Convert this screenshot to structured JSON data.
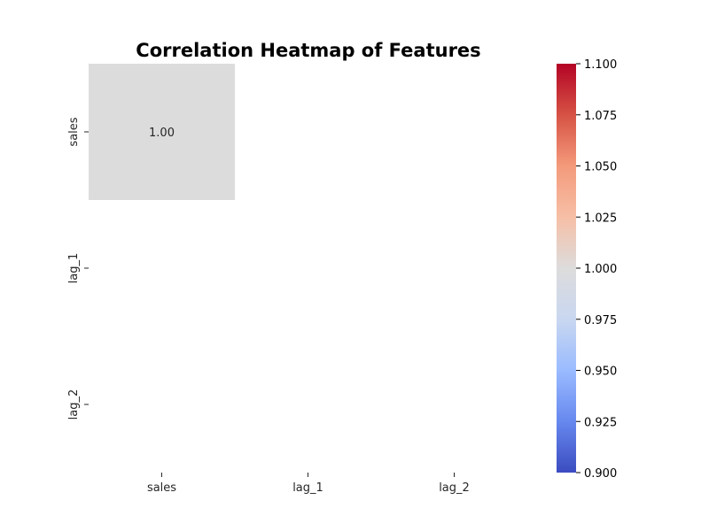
{
  "chart_data": {
    "type": "heatmap",
    "title": "Correlation Heatmap of Features",
    "xlabel": "",
    "ylabel": "",
    "x_categories": [
      "sales",
      "lag_1",
      "lag_2"
    ],
    "y_categories": [
      "sales",
      "lag_1",
      "lag_2"
    ],
    "values": [
      [
        1.0,
        null,
        null
      ],
      [
        null,
        null,
        null
      ],
      [
        null,
        null,
        null
      ]
    ],
    "cell_labels": [
      [
        "1.00",
        "",
        ""
      ],
      [
        "",
        "",
        ""
      ],
      [
        "",
        "",
        ""
      ]
    ],
    "colormap": "coolwarm",
    "color_range": [
      0.9,
      1.1
    ],
    "colorbar_ticks": [
      "0.900",
      "0.925",
      "0.950",
      "0.975",
      "1.000",
      "1.025",
      "1.050",
      "1.075",
      "1.100"
    ],
    "colorbar_colors": [
      "#3b4cc0",
      "#6788ee",
      "#9abbff",
      "#c9d7f0",
      "#dddcdc",
      "#f6bfa6",
      "#f49a7b",
      "#d65244",
      "#b40426"
    ],
    "missing_cell_color": "#ffffff",
    "grid": false,
    "legend": "colorbar-right"
  }
}
